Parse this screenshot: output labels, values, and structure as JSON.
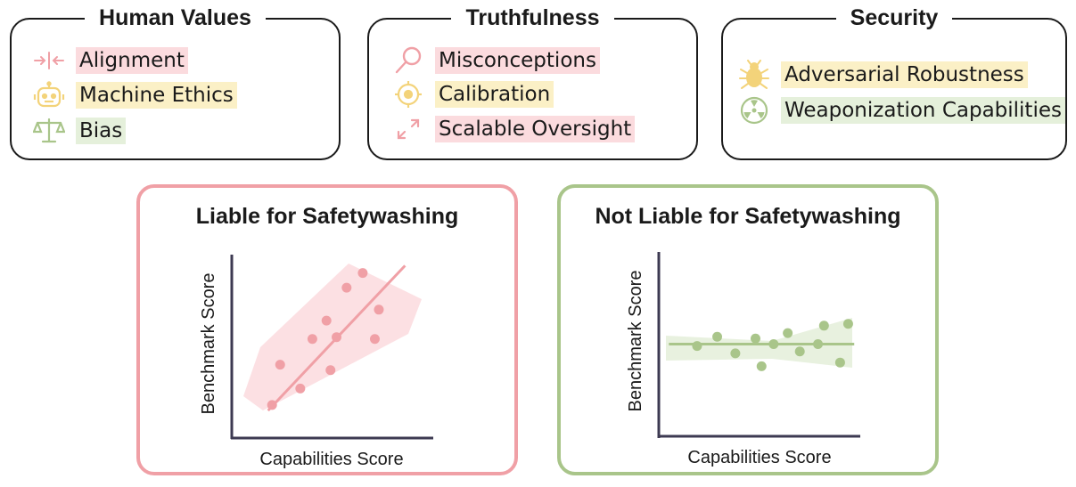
{
  "categories": [
    {
      "title": "Human Values",
      "items": [
        {
          "label": "Alignment",
          "icon": "alignment-icon",
          "highlight": "pink"
        },
        {
          "label": "Machine Ethics",
          "icon": "robot-icon",
          "highlight": "yellow"
        },
        {
          "label": "Bias",
          "icon": "scales-icon",
          "highlight": "green"
        }
      ]
    },
    {
      "title": "Truthfulness",
      "items": [
        {
          "label": "Misconceptions",
          "icon": "magnifier-icon",
          "highlight": "pink"
        },
        {
          "label": "Calibration",
          "icon": "target-icon",
          "highlight": "yellow"
        },
        {
          "label": "Scalable Oversight",
          "icon": "expand-arrows-icon",
          "highlight": "pink"
        }
      ]
    },
    {
      "title": "Security",
      "items": [
        {
          "label": "Adversarial Robustness",
          "icon": "bug-icon",
          "highlight": "yellow"
        },
        {
          "label": "Weaponization Capabilities",
          "icon": "radiation-icon",
          "highlight": "green"
        }
      ]
    }
  ],
  "panels": {
    "liable": {
      "title": "Liable for Safetywashing",
      "xlabel": "Capabilities Score",
      "ylabel": "Benchmark Score"
    },
    "not_liable": {
      "title": "Not Liable for Safetywashing",
      "xlabel": "Capabilities Score",
      "ylabel": "Benchmark Score"
    }
  },
  "colors": {
    "pink": "#f0a0a6",
    "pink_fill": "#fbdbde",
    "yellow": "#f3d37a",
    "green": "#a9c58a",
    "green_fill": "#e5f0db",
    "axis": "#3d3a52"
  },
  "chart_data": [
    {
      "type": "scatter",
      "title": "Liable for Safetywashing",
      "xlabel": "Capabilities Score",
      "ylabel": "Benchmark Score",
      "xlim": [
        0,
        10
      ],
      "ylim": [
        0,
        10
      ],
      "x": [
        2.0,
        2.4,
        3.4,
        4.0,
        4.9,
        4.7,
        5.2,
        5.7,
        6.5,
        7.1,
        7.3
      ],
      "y": [
        1.8,
        4.0,
        2.7,
        5.4,
        3.7,
        6.4,
        5.5,
        8.2,
        9.0,
        5.4,
        7.0
      ],
      "trend": {
        "x": [
          1.8,
          8.6
        ],
        "y": [
          1.5,
          9.4
        ]
      }
    },
    {
      "type": "scatter",
      "title": "Not Liable for Safetywashing",
      "xlabel": "Capabilities Score",
      "ylabel": "Benchmark Score",
      "xlim": [
        0,
        10
      ],
      "ylim": [
        0,
        10
      ],
      "x": [
        1.9,
        2.9,
        3.8,
        4.8,
        5.1,
        5.7,
        6.4,
        7.0,
        7.9,
        8.2,
        9.0,
        9.4
      ],
      "y": [
        4.9,
        5.4,
        4.5,
        5.3,
        3.8,
        5.0,
        5.6,
        4.6,
        5.0,
        6.0,
        4.0,
        6.1
      ],
      "trend": {
        "x": [
          0.5,
          9.7
        ],
        "y": [
          5.0,
          5.0
        ]
      }
    }
  ]
}
